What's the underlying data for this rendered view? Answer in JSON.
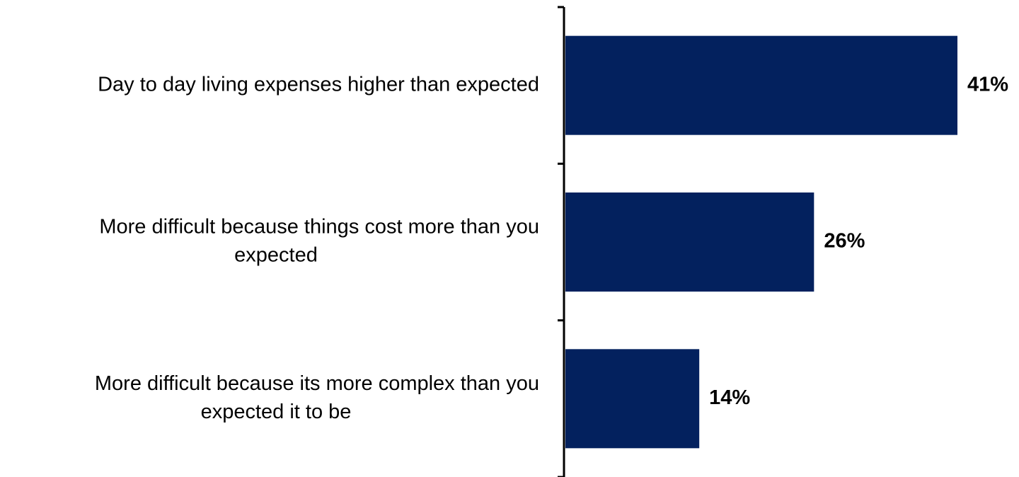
{
  "chart_data": {
    "type": "bar",
    "orientation": "horizontal",
    "categories": [
      "Day to day living expenses higher than expected",
      "More difficult because things cost more than you expected",
      "More difficult because its more complex than you expected it to be"
    ],
    "category_lines": [
      [
        "Day to day living expenses higher than expected"
      ],
      [
        "More difficult because things cost more than you",
        "expected"
      ],
      [
        "More difficult because its more complex than you",
        "expected it to be"
      ]
    ],
    "values": [
      41,
      26,
      14
    ],
    "value_labels": [
      "41%",
      "26%",
      "14%"
    ],
    "unit": "%",
    "xlim": [
      0,
      41
    ],
    "bar_color": "#03215E",
    "axis_color": "#000000",
    "grid": false,
    "legend": "none"
  }
}
